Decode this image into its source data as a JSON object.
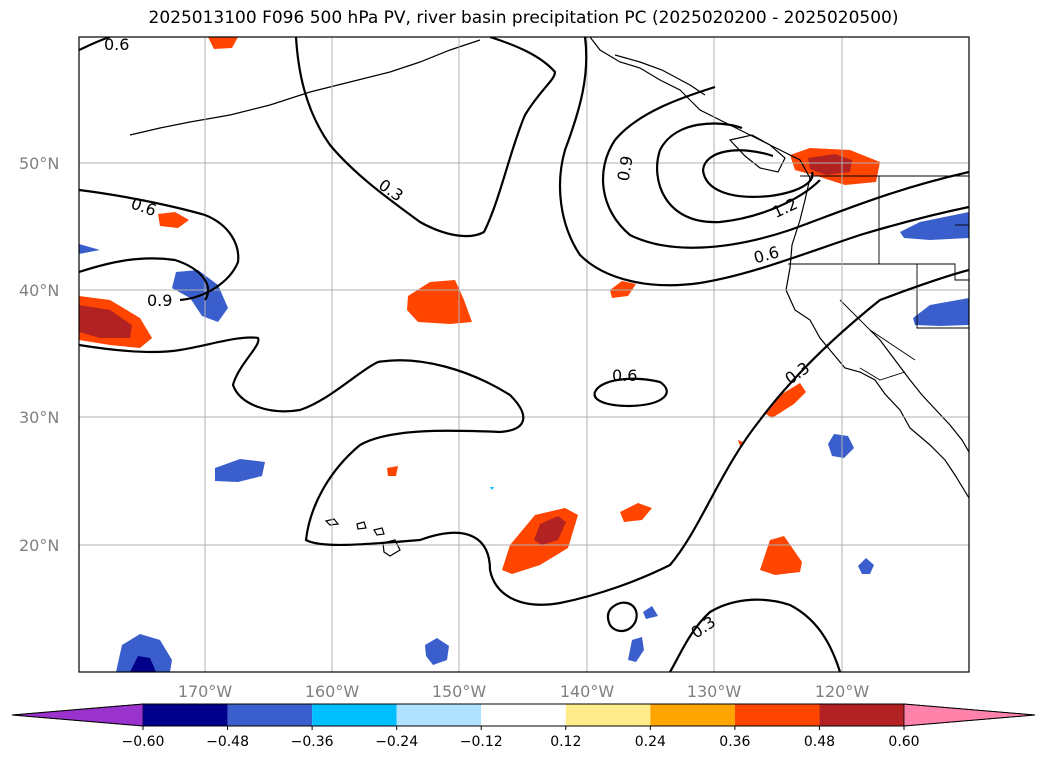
{
  "title": "2025013100 F096 500 hPa PV, river basin precipitation PC (2025020200 - 2025020500)",
  "lat_labels": [
    "50°N",
    "40°N",
    "30°N",
    "20°N"
  ],
  "lon_labels": [
    "170°W",
    "160°W",
    "150°W",
    "140°W",
    "130°W",
    "120°W"
  ],
  "contour_labels": [
    "0.6",
    "0.3",
    "0.6",
    "0.9",
    "0.9",
    "1.2",
    "0.6",
    "0.6",
    "0.3",
    "0.3"
  ],
  "colorbar": {
    "ticks": [
      "−0.60",
      "−0.48",
      "−0.36",
      "−0.24",
      "−0.12",
      "0.12",
      "0.24",
      "0.36",
      "0.48",
      "0.60"
    ],
    "colors": [
      "#9a32cd",
      "#00008b",
      "#3a5fcd",
      "#00bfff",
      "#b0e2ff",
      "#ffffff",
      "#ffec8b",
      "#ffa500",
      "#ff4500",
      "#b22222",
      "#ff82ab"
    ]
  }
}
